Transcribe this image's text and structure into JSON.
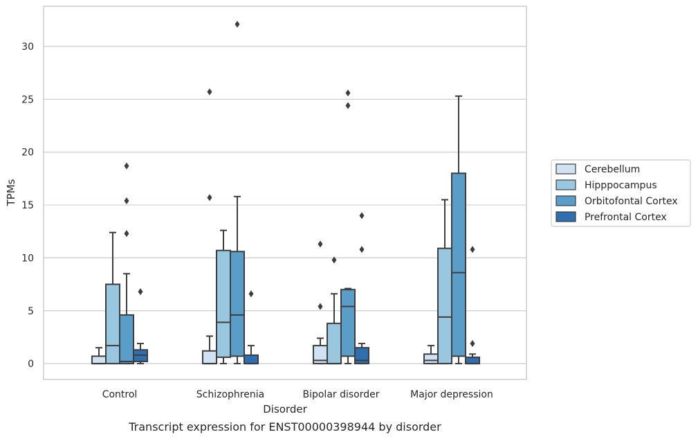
{
  "caption": "Transcript expression for ENST00000398944 by disorder",
  "chart_data": {
    "type": "box",
    "xlabel": "Disorder",
    "ylabel": "TPMs",
    "ylim": [
      -1.5,
      33.8
    ],
    "yticks": [
      0,
      5,
      10,
      15,
      20,
      25,
      30
    ],
    "grid": "horizontal",
    "legend_placement": "right",
    "categories": [
      "Control",
      "Schizophrenia",
      "Bipolar disorder",
      "Major depression"
    ],
    "series": [
      {
        "name": "Cerebellum",
        "color": "#d1e2f2",
        "boxes": [
          {
            "whislo": 0,
            "q1": 0,
            "med": 0,
            "q3": 0.7,
            "whishi": 1.5,
            "fliers": []
          },
          {
            "whislo": 0,
            "q1": 0,
            "med": 0,
            "q3": 1.2,
            "whishi": 2.6,
            "fliers": [
              15.7,
              25.7
            ]
          },
          {
            "whislo": 0,
            "q1": 0,
            "med": 0.3,
            "q3": 1.7,
            "whishi": 2.4,
            "fliers": [
              5.4,
              11.3
            ]
          },
          {
            "whislo": 0,
            "q1": 0,
            "med": 0.3,
            "q3": 0.9,
            "whishi": 1.7,
            "fliers": []
          }
        ]
      },
      {
        "name": "Hipppocampus",
        "color": "#9ac7e0",
        "boxes": [
          {
            "whislo": 0,
            "q1": 0,
            "med": 1.7,
            "q3": 7.5,
            "whishi": 12.4,
            "fliers": []
          },
          {
            "whislo": 0,
            "q1": 0.6,
            "med": 3.9,
            "q3": 10.7,
            "whishi": 12.6,
            "fliers": []
          },
          {
            "whislo": 0,
            "q1": 0,
            "med": 0,
            "q3": 3.8,
            "whishi": 6.6,
            "fliers": [
              9.8
            ]
          },
          {
            "whislo": 0,
            "q1": 0,
            "med": 4.4,
            "q3": 10.9,
            "whishi": 15.5,
            "fliers": []
          }
        ]
      },
      {
        "name": "Orbitofontal Cortex",
        "color": "#5b9dc9",
        "boxes": [
          {
            "whislo": 0,
            "q1": 0,
            "med": 0.2,
            "q3": 4.6,
            "whishi": 8.5,
            "fliers": [
              12.3,
              15.4,
              18.7
            ]
          },
          {
            "whislo": 0,
            "q1": 0.7,
            "med": 4.6,
            "q3": 10.6,
            "whishi": 15.8,
            "fliers": [
              32.1
            ]
          },
          {
            "whislo": 0,
            "q1": 0.7,
            "med": 5.4,
            "q3": 7.0,
            "whishi": 7.1,
            "fliers": [
              24.4,
              25.6
            ]
          },
          {
            "whislo": 0,
            "q1": 0.7,
            "med": 8.6,
            "q3": 18.0,
            "whishi": 25.3,
            "fliers": []
          }
        ]
      },
      {
        "name": "Prefrontal Cortex",
        "color": "#2f6eaf",
        "boxes": [
          {
            "whislo": 0,
            "q1": 0.2,
            "med": 0.8,
            "q3": 1.3,
            "whishi": 1.9,
            "fliers": [
              6.8
            ]
          },
          {
            "whislo": 0,
            "q1": 0,
            "med": 0,
            "q3": 0.8,
            "whishi": 1.7,
            "fliers": [
              6.6
            ]
          },
          {
            "whislo": 0,
            "q1": 0,
            "med": 0.3,
            "q3": 1.5,
            "whishi": 1.9,
            "fliers": [
              10.8,
              14.0
            ]
          },
          {
            "whislo": 0,
            "q1": 0,
            "med": 0,
            "q3": 0.6,
            "whishi": 0.9,
            "fliers": [
              1.9,
              10.8
            ]
          }
        ]
      }
    ]
  }
}
